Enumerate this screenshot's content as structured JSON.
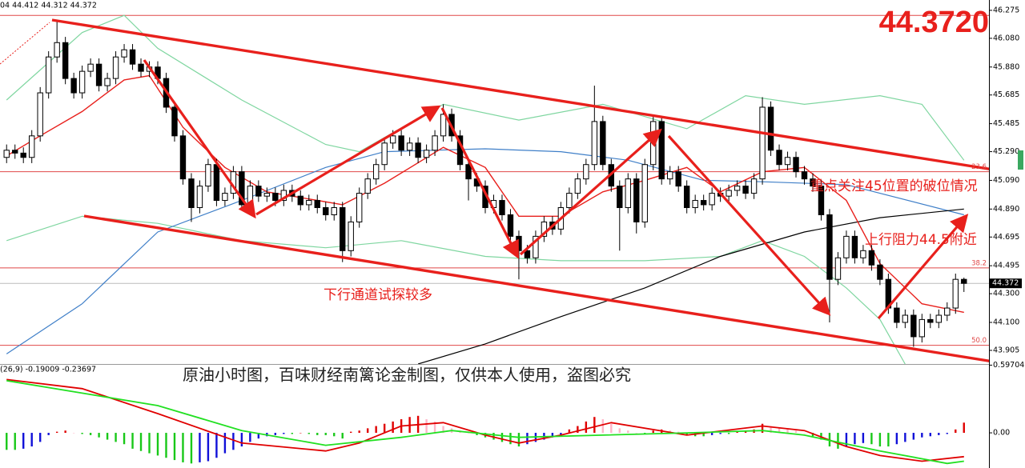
{
  "chart_data": {
    "type": "candlestick",
    "title": "44.3720",
    "info": "04 44.412 44.312 44.372",
    "annotations": [
      "下行通道试探较多",
      "重点关注45位置的破位情况",
      "上行阻力44.5附近"
    ],
    "watermark": "原油小时图，百味财经南篱论金制图，仅供本人使用，盗图必究",
    "ylim": [
      43.81,
      46.347
    ],
    "yticks": [
      46.275,
      {
        "value": 46.08,
        "label": "46.080"
      },
      {
        "value": 45.88,
        "label": "45.880"
      },
      45.685,
      45.485,
      {
        "value": 45.29,
        "label": "45.290"
      },
      {
        "value": 45.09,
        "label": "45.090"
      },
      {
        "value": 44.89,
        "label": "44.890"
      },
      44.695,
      44.495,
      {
        "value": 44.3,
        "label": "44.300"
      },
      {
        "value": 44.1,
        "label": "44.100"
      },
      43.905
    ],
    "bull_color": "#ffffff",
    "bear_color": "#000000",
    "levels_color": "#e04848",
    "levels": [
      {
        "value": 46.24
      },
      {
        "value": 45.15,
        "label": "23.6"
      },
      {
        "value": 44.48,
        "label": "38.2"
      },
      {
        "value": 43.94,
        "label": "50.0"
      }
    ],
    "candles": [
      [
        45.25,
        45.34,
        45.21,
        45.3
      ],
      [
        45.3,
        45.34,
        45.24,
        45.28
      ],
      [
        45.28,
        45.32,
        45.21,
        45.25
      ],
      [
        45.25,
        45.44,
        45.21,
        45.4
      ],
      [
        45.4,
        45.74,
        45.36,
        45.7
      ],
      [
        45.7,
        45.99,
        45.66,
        45.95
      ],
      [
        45.95,
        46.2,
        45.91,
        46.05
      ],
      [
        46.05,
        46.09,
        45.76,
        45.8
      ],
      [
        45.8,
        45.84,
        45.66,
        45.7
      ],
      [
        45.7,
        45.89,
        45.66,
        45.85
      ],
      [
        45.85,
        45.94,
        45.81,
        45.9
      ],
      [
        45.9,
        45.94,
        45.71,
        45.75
      ],
      [
        45.75,
        45.84,
        45.71,
        45.8
      ],
      [
        45.8,
        45.99,
        45.76,
        45.95
      ],
      [
        45.95,
        46.04,
        45.91,
        46.0
      ],
      [
        46.0,
        46.04,
        45.86,
        45.9
      ],
      [
        45.9,
        45.94,
        45.81,
        45.85
      ],
      [
        45.85,
        45.92,
        45.81,
        45.88
      ],
      [
        45.88,
        45.92,
        45.76,
        45.8
      ],
      [
        45.8,
        45.84,
        45.56,
        45.6
      ],
      [
        45.6,
        45.64,
        45.36,
        45.4
      ],
      [
        45.4,
        45.44,
        45.06,
        45.1
      ],
      [
        45.1,
        45.14,
        44.8,
        44.9
      ],
      [
        44.9,
        45.09,
        44.86,
        45.05
      ],
      [
        45.05,
        45.24,
        45.01,
        45.2
      ],
      [
        45.2,
        45.24,
        44.91,
        44.95
      ],
      [
        44.95,
        45.04,
        44.91,
        45.0
      ],
      [
        45.0,
        45.19,
        44.96,
        45.15
      ],
      [
        45.15,
        45.19,
        44.88,
        44.92
      ],
      [
        44.92,
        45.09,
        44.88,
        45.05
      ],
      [
        45.05,
        45.09,
        44.94,
        44.98
      ],
      [
        44.98,
        45.04,
        44.94,
        45.0
      ],
      [
        45.0,
        45.04,
        44.91,
        44.95
      ],
      [
        44.95,
        45.06,
        44.91,
        45.02
      ],
      [
        45.02,
        45.06,
        44.94,
        44.98
      ],
      [
        44.98,
        45.02,
        44.88,
        44.92
      ],
      [
        44.92,
        44.99,
        44.88,
        44.95
      ],
      [
        44.95,
        44.99,
        44.86,
        44.9
      ],
      [
        44.9,
        44.94,
        44.81,
        44.85
      ],
      [
        44.85,
        44.94,
        44.81,
        44.9
      ],
      [
        44.9,
        44.94,
        44.52,
        44.6
      ],
      [
        44.6,
        44.84,
        44.56,
        44.8
      ],
      [
        44.8,
        45.04,
        44.76,
        45.0
      ],
      [
        45.0,
        45.14,
        44.96,
        45.1
      ],
      [
        45.1,
        45.24,
        45.06,
        45.2
      ],
      [
        45.2,
        45.39,
        45.16,
        45.35
      ],
      [
        45.35,
        45.44,
        45.31,
        45.4
      ],
      [
        45.4,
        45.44,
        45.26,
        45.3
      ],
      [
        45.3,
        45.39,
        45.26,
        45.35
      ],
      [
        45.35,
        45.39,
        45.21,
        45.25
      ],
      [
        45.25,
        45.34,
        45.21,
        45.3
      ],
      [
        45.3,
        45.44,
        45.26,
        45.4
      ],
      [
        45.4,
        45.62,
        45.36,
        45.55
      ],
      [
        45.55,
        45.59,
        45.36,
        45.4
      ],
      [
        45.4,
        45.44,
        45.16,
        45.2
      ],
      [
        45.2,
        45.24,
        44.95,
        45.1
      ],
      [
        45.1,
        45.14,
        45.01,
        45.05
      ],
      [
        45.05,
        45.09,
        44.86,
        44.9
      ],
      [
        44.9,
        44.99,
        44.86,
        44.95
      ],
      [
        44.95,
        44.99,
        44.81,
        44.85
      ],
      [
        44.85,
        44.89,
        44.66,
        44.7
      ],
      [
        44.7,
        44.74,
        44.4,
        44.6
      ],
      [
        44.6,
        44.64,
        44.51,
        44.55
      ],
      [
        44.55,
        44.74,
        44.51,
        44.7
      ],
      [
        44.7,
        44.84,
        44.66,
        44.8
      ],
      [
        44.8,
        44.84,
        44.71,
        44.75
      ],
      [
        44.75,
        44.94,
        44.71,
        44.9
      ],
      [
        44.9,
        45.04,
        44.86,
        45.0
      ],
      [
        45.0,
        45.14,
        44.96,
        45.1
      ],
      [
        45.1,
        45.24,
        45.06,
        45.2
      ],
      [
        45.2,
        45.75,
        45.16,
        45.5
      ],
      [
        45.5,
        45.54,
        45.16,
        45.2
      ],
      [
        45.2,
        45.24,
        45.01,
        45.05
      ],
      [
        45.05,
        45.09,
        44.6,
        44.9
      ],
      [
        44.9,
        45.14,
        44.86,
        45.1
      ],
      [
        45.1,
        45.14,
        44.72,
        44.8
      ],
      [
        44.8,
        45.24,
        44.76,
        45.2
      ],
      [
        45.2,
        45.54,
        45.16,
        45.5
      ],
      [
        45.5,
        45.54,
        45.06,
        45.1
      ],
      [
        45.1,
        45.19,
        45.06,
        45.15
      ],
      [
        45.15,
        45.19,
        45.01,
        45.05
      ],
      [
        45.05,
        45.09,
        44.86,
        44.9
      ],
      [
        44.9,
        44.99,
        44.86,
        44.95
      ],
      [
        44.95,
        44.99,
        44.88,
        44.92
      ],
      [
        44.92,
        45.04,
        44.88,
        45.0
      ],
      [
        45.0,
        45.04,
        44.94,
        44.98
      ],
      [
        44.98,
        45.06,
        44.94,
        45.02
      ],
      [
        45.02,
        45.09,
        44.98,
        45.05
      ],
      [
        45.05,
        45.09,
        44.96,
        45.0
      ],
      [
        45.0,
        45.14,
        44.96,
        45.1
      ],
      [
        45.1,
        45.67,
        45.06,
        45.6
      ],
      [
        45.6,
        45.64,
        45.26,
        45.3
      ],
      [
        45.3,
        45.34,
        45.16,
        45.2
      ],
      [
        45.2,
        45.29,
        45.16,
        45.25
      ],
      [
        45.25,
        45.29,
        45.11,
        45.15
      ],
      [
        45.15,
        45.19,
        45.06,
        45.1
      ],
      [
        45.1,
        45.14,
        45.01,
        45.05
      ],
      [
        45.05,
        45.09,
        44.81,
        44.85
      ],
      [
        44.85,
        44.89,
        44.1,
        44.4
      ],
      [
        44.4,
        44.59,
        44.36,
        44.55
      ],
      [
        44.55,
        44.74,
        44.51,
        44.7
      ],
      [
        44.7,
        44.74,
        44.51,
        44.55
      ],
      [
        44.55,
        44.64,
        44.51,
        44.6
      ],
      [
        44.6,
        44.64,
        44.46,
        44.5
      ],
      [
        44.5,
        44.54,
        44.36,
        44.4
      ],
      [
        44.4,
        44.44,
        44.16,
        44.2
      ],
      [
        44.2,
        44.24,
        44.06,
        44.1
      ],
      [
        44.1,
        44.19,
        44.06,
        44.15
      ],
      [
        44.15,
        44.19,
        43.93,
        44.0
      ],
      [
        44.0,
        44.16,
        43.96,
        44.12
      ],
      [
        44.12,
        44.16,
        44.06,
        44.1
      ],
      [
        44.1,
        44.19,
        44.06,
        44.15
      ],
      [
        44.15,
        44.24,
        44.11,
        44.2
      ],
      [
        44.2,
        44.44,
        44.16,
        44.4
      ],
      [
        44.4,
        44.412,
        44.312,
        44.372
      ]
    ],
    "overlays": [
      {
        "color": "#7fd6a0",
        "x": [
          0,
          9,
          14,
          18,
          28,
          38,
          42,
          52,
          61,
          71,
          81,
          88,
          95,
          104,
          109,
          114
        ],
        "values": [
          45.65,
          46.12,
          46.24,
          46.01,
          45.65,
          45.34,
          45.29,
          45.62,
          45.51,
          45.62,
          45.45,
          45.68,
          45.62,
          45.68,
          45.62,
          45.23
        ]
      },
      {
        "color": "#7fd6a0",
        "x": [
          0,
          9,
          18,
          28,
          38,
          47,
          57,
          66,
          76,
          85,
          90,
          95,
          100,
          104,
          107
        ],
        "values": [
          44.67,
          44.84,
          44.79,
          44.67,
          44.62,
          44.67,
          44.56,
          44.53,
          44.53,
          44.56,
          44.67,
          44.56,
          44.34,
          44.12,
          43.81
        ]
      },
      {
        "color": "#3f7fc8",
        "x": [
          0,
          9,
          18,
          28,
          38,
          45,
          57,
          66,
          74,
          83,
          90,
          100,
          114
        ],
        "values": [
          43.88,
          44.23,
          44.73,
          44.95,
          45.18,
          45.29,
          45.31,
          45.29,
          45.23,
          45.09,
          45.08,
          45.06,
          44.85
        ]
      },
      {
        "color": "#000000",
        "x": [
          49,
          57,
          66,
          76,
          85,
          95,
          104,
          114
        ],
        "values": [
          43.81,
          43.95,
          44.14,
          44.34,
          44.56,
          44.73,
          44.83,
          44.89
        ]
      },
      {
        "color": "#e8201c",
        "x": [
          0,
          4,
          9,
          14,
          17,
          21,
          26,
          31,
          37,
          40,
          45,
          52,
          57,
          61,
          66,
          71,
          76,
          81,
          85,
          90,
          95,
          100,
          104,
          109,
          114
        ],
        "values": [
          45.26,
          45.4,
          45.57,
          45.79,
          45.82,
          45.46,
          45.18,
          45.01,
          44.95,
          44.92,
          45.07,
          45.32,
          45.18,
          44.84,
          44.84,
          45.01,
          45.09,
          45.18,
          45.01,
          45.15,
          45.18,
          44.95,
          44.51,
          44.23,
          44.17
        ]
      }
    ],
    "macd": {
      "label": "(26,9) -0.19009 -0.23697",
      "ylim": [
        -0.31,
        0.6
      ],
      "yticks": [
        0.59704,
        {
          "value": 0,
          "label": "0.00"
        }
      ],
      "colors": {
        "rise_pos": "#e00000",
        "fall_pos": "#ffb6c8",
        "fall_neg": "#18c818",
        "rise_neg": "#1010d8"
      },
      "histogram": [
        -0.15,
        -0.15,
        -0.14,
        -0.12,
        -0.08,
        -0.02,
        0.01,
        0.02,
        0.0,
        -0.01,
        -0.02,
        -0.04,
        -0.06,
        -0.08,
        -0.1,
        -0.14,
        -0.16,
        -0.18,
        -0.2,
        -0.22,
        -0.24,
        -0.26,
        -0.27,
        -0.26,
        -0.25,
        -0.22,
        -0.18,
        -0.15,
        -0.12,
        -0.08,
        -0.05,
        -0.03,
        -0.02,
        -0.01,
        -0.01,
        0.0,
        -0.01,
        -0.02,
        -0.02,
        -0.03,
        -0.05,
        0.01,
        0.02,
        0.04,
        0.06,
        0.08,
        0.1,
        0.12,
        0.14,
        0.15,
        0.12,
        0.1,
        0.06,
        0.04,
        0.02,
        0.0,
        -0.02,
        -0.04,
        -0.06,
        -0.08,
        -0.1,
        -0.12,
        -0.1,
        -0.08,
        -0.06,
        -0.04,
        -0.02,
        0.03,
        0.06,
        0.1,
        0.14,
        0.12,
        0.08,
        0.04,
        0.02,
        0.0,
        -0.01,
        0.02,
        0.03,
        0.02,
        0.01,
        -0.02,
        -0.03,
        -0.03,
        -0.02,
        -0.01,
        -0.01,
        0.01,
        0.02,
        0.03,
        0.08,
        0.06,
        0.05,
        0.04,
        0.02,
        0.0,
        -0.03,
        -0.06,
        -0.12,
        -0.14,
        -0.12,
        -0.1,
        -0.09,
        -0.1,
        -0.12,
        -0.12,
        -0.1,
        -0.08,
        -0.06,
        -0.04,
        -0.03,
        -0.02,
        -0.01,
        0.03,
        0.09
      ],
      "lines": [
        {
          "color": "#e00000",
          "x": [
            0,
            9,
            18,
            28,
            38,
            42,
            47,
            52,
            57,
            61,
            66,
            72,
            81,
            90,
            95,
            100,
            104,
            109,
            114
          ],
          "values": [
            0.47,
            0.39,
            0.17,
            -0.09,
            -0.16,
            -0.09,
            0.06,
            0.09,
            -0.02,
            -0.09,
            -0.02,
            0.09,
            -0.02,
            0.06,
            0.02,
            -0.12,
            -0.2,
            -0.25,
            -0.21
          ]
        },
        {
          "color": "#22e022",
          "x": [
            0,
            9,
            18,
            28,
            38,
            47,
            53,
            61,
            71,
            81,
            90,
            95,
            104,
            112,
            114
          ],
          "values": [
            0.46,
            0.35,
            0.24,
            0.02,
            -0.11,
            -0.04,
            0.02,
            -0.04,
            -0.02,
            0.0,
            0.02,
            -0.02,
            -0.16,
            -0.27,
            -0.25
          ]
        }
      ]
    }
  }
}
